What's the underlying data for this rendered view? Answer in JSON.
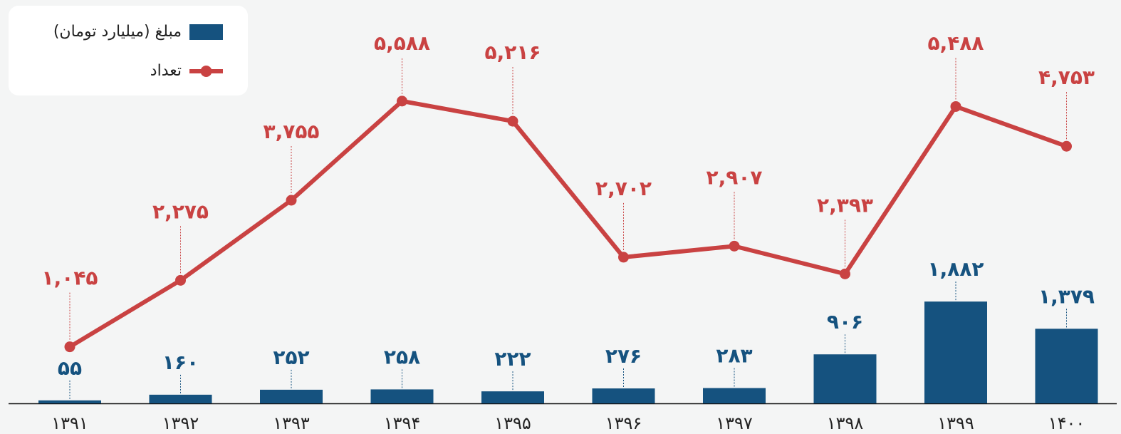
{
  "chart_data": {
    "type": "bar_line",
    "categories": [
      "۱۳۹۱",
      "۱۳۹۲",
      "۱۳۹۳",
      "۱۳۹۴",
      "۱۳۹۵",
      "۱۳۹۶",
      "۱۳۹۷",
      "۱۳۹۸",
      "۱۳۹۹",
      "۱۴۰۰"
    ],
    "series": [
      {
        "name": "مبلغ (میلیارد تومان)",
        "type": "bar",
        "color": "#15527f",
        "values": [
          55,
          160,
          252,
          258,
          222,
          276,
          283,
          906,
          1882,
          1379
        ],
        "value_labels": [
          "۵۵",
          "۱۶۰",
          "۲۵۲",
          "۲۵۸",
          "۲۲۲",
          "۲۷۶",
          "۲۸۳",
          "۹۰۶",
          "۱,۸۸۲",
          "۱,۳۷۹"
        ]
      },
      {
        "name": "تعداد",
        "type": "line",
        "color": "#c94242",
        "values": [
          1045,
          2275,
          3755,
          5588,
          5216,
          2702,
          2907,
          2393,
          5488,
          4753
        ],
        "value_labels": [
          "۱,۰۴۵",
          "۲,۲۷۵",
          "۳,۷۵۵",
          "۵,۵۸۸",
          "۵,۲۱۶",
          "۲,۷۰۲",
          "۲,۹۰۷",
          "۲,۳۹۳",
          "۵,۴۸۸",
          "۴,۷۵۳"
        ]
      }
    ],
    "legend": "top-left"
  }
}
